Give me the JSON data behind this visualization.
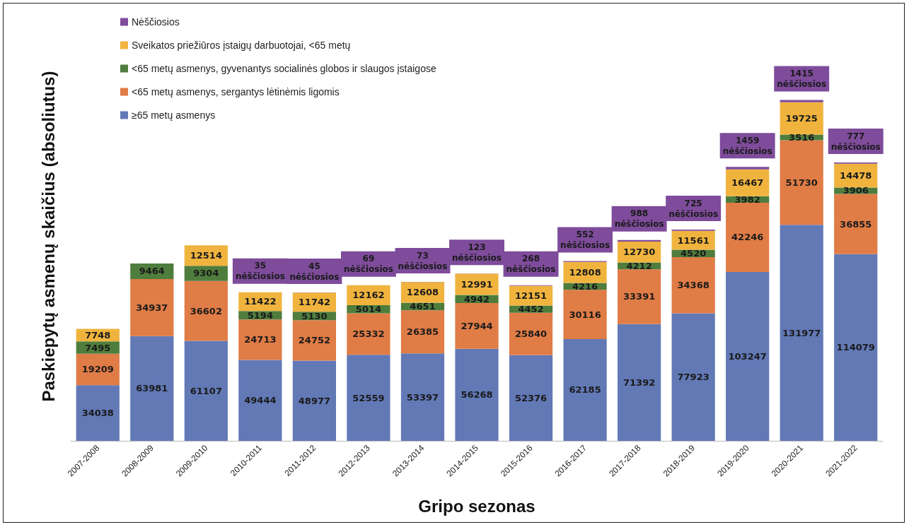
{
  "chart_data": {
    "type": "bar",
    "stacked": true,
    "relative": false,
    "data_labels": true,
    "legend": "top left",
    "grid": false,
    "xlabel": "Gripo sezonas",
    "ylabel": "Paskiepytų asmenų skaičius (absoliutus)",
    "categories": [
      "2007-2008",
      "2008-2009",
      "2009-2010",
      "2010-2011",
      "2011-2012",
      "2012-2013",
      "2013-2014",
      "2014-2015",
      "2015-2016",
      "2016-2017",
      "2017-2018",
      "2018-2019",
      "2019-2020",
      "2020-2021",
      "2021-2022"
    ],
    "series": [
      {
        "name": "≥65 metų asmenys",
        "color": "#6279b6",
        "values": [
          34038,
          63981,
          61107,
          49444,
          48977,
          52559,
          53397,
          56268,
          52376,
          62185,
          71392,
          77923,
          103247,
          131977,
          114079
        ]
      },
      {
        "name": "<65 metų asmenys, sergantys lėtinėmis ligomis",
        "color": "#e07c46",
        "values": [
          19209,
          34937,
          36602,
          24713,
          24752,
          25332,
          26385,
          27944,
          25840,
          30116,
          33391,
          34368,
          42246,
          51730,
          36855
        ]
      },
      {
        "name": "<65 metų asmenys, gyvenantys socialinės globos ir slaugos įstaigose",
        "color": "#4f7d3d",
        "values": [
          7495,
          9464,
          9304,
          5194,
          5130,
          5014,
          4651,
          4942,
          4452,
          4216,
          4212,
          4520,
          3982,
          3516,
          3906
        ]
      },
      {
        "name": "Sveikatos priežiūros įstaigų darbuotojai, <65 metų",
        "color": "#f0b43e",
        "values": [
          7748,
          null,
          12514,
          11422,
          11742,
          12162,
          12608,
          12991,
          12151,
          12808,
          12730,
          11561,
          16467,
          19725,
          14478
        ]
      },
      {
        "name": "Nėščiosios",
        "color": "#7e4c9b",
        "values": [
          null,
          null,
          null,
          35,
          45,
          69,
          73,
          123,
          268,
          552,
          988,
          725,
          1459,
          1415,
          777
        ],
        "value_labels": [
          null,
          null,
          null,
          "35\nnėščiosios",
          "45\nnėščiosios",
          "69\nnėščiosios",
          "73\nnėščiosios",
          "123\nnėščiosios",
          "268\nnėščiosios",
          "552\nnėščiosios",
          "988\nnėščiosios",
          "725\nnėščiosios",
          "1459\nnėščiosios",
          "1415\nnėščiosios",
          "777\nnėščiosios"
        ]
      }
    ]
  }
}
